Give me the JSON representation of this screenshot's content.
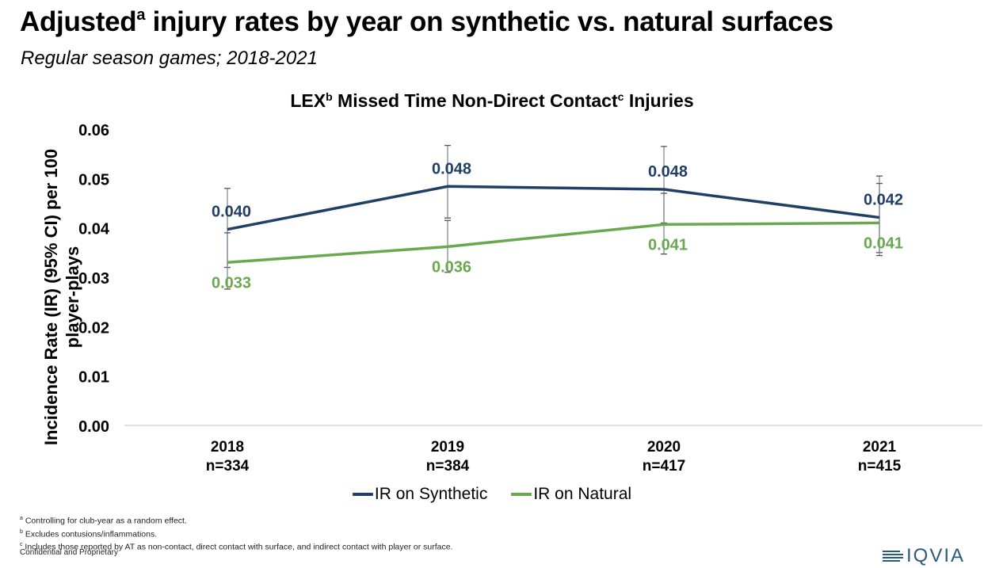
{
  "header": {
    "title": "Adjusted",
    "title_sup": "a",
    "title_rest": " injury rates by year on synthetic vs. natural surfaces",
    "subtitle": "Regular season games; 2018-2021"
  },
  "chart_data": {
    "type": "line",
    "title": "LEX",
    "title_sup_b": "b",
    "title_mid": " Missed Time Non-Direct Contact",
    "title_sup_c": "c",
    "title_end": " Injuries",
    "ylabel": "Incidence Rate (IR) (95% CI) per 100 player-plays",
    "xlabel": "",
    "ylim": [
      0,
      0.06
    ],
    "yticks": [
      "0.00",
      "0.01",
      "0.02",
      "0.03",
      "0.04",
      "0.05",
      "0.06"
    ],
    "ytick_values": [
      0,
      0.01,
      0.02,
      0.03,
      0.04,
      0.05,
      0.06
    ],
    "categories": [
      "2018",
      "2019",
      "2020",
      "2021"
    ],
    "category_n": [
      "n=334",
      "n=384",
      "n=417",
      "n=415"
    ],
    "grid": false,
    "legend_position": "bottom",
    "series": [
      {
        "name": "IR on Synthetic",
        "color": "#1f3f66",
        "values": [
          0.0397,
          0.0484,
          0.0478,
          0.0421
        ],
        "labels": [
          "0.040",
          "0.048",
          "0.048",
          "0.042"
        ],
        "ci_lower": [
          0.032,
          0.042,
          0.041,
          0.035
        ],
        "ci_upper": [
          0.048,
          0.0567,
          0.0565,
          0.0505
        ]
      },
      {
        "name": "IR on Natural",
        "color": "#6aa84f",
        "values": [
          0.033,
          0.0362,
          0.0407,
          0.041
        ],
        "labels": [
          "0.033",
          "0.036",
          "0.041",
          "0.041"
        ],
        "ci_lower": [
          0.0276,
          0.031,
          0.0347,
          0.0344
        ],
        "ci_upper": [
          0.039,
          0.0415,
          0.047,
          0.049
        ]
      }
    ]
  },
  "footnotes": [
    {
      "sup": "a",
      "text": " Controlling for club-year as a random effect."
    },
    {
      "sup": "b",
      "text": " Excludes contusions/inflammations."
    },
    {
      "sup": "c",
      "text": " Includes those reported by AT as non-contact, direct contact with surface, and indirect contact with player or surface."
    }
  ],
  "footer": {
    "confidential": "Confidential and Proprietary",
    "logo": "IQVIA"
  }
}
